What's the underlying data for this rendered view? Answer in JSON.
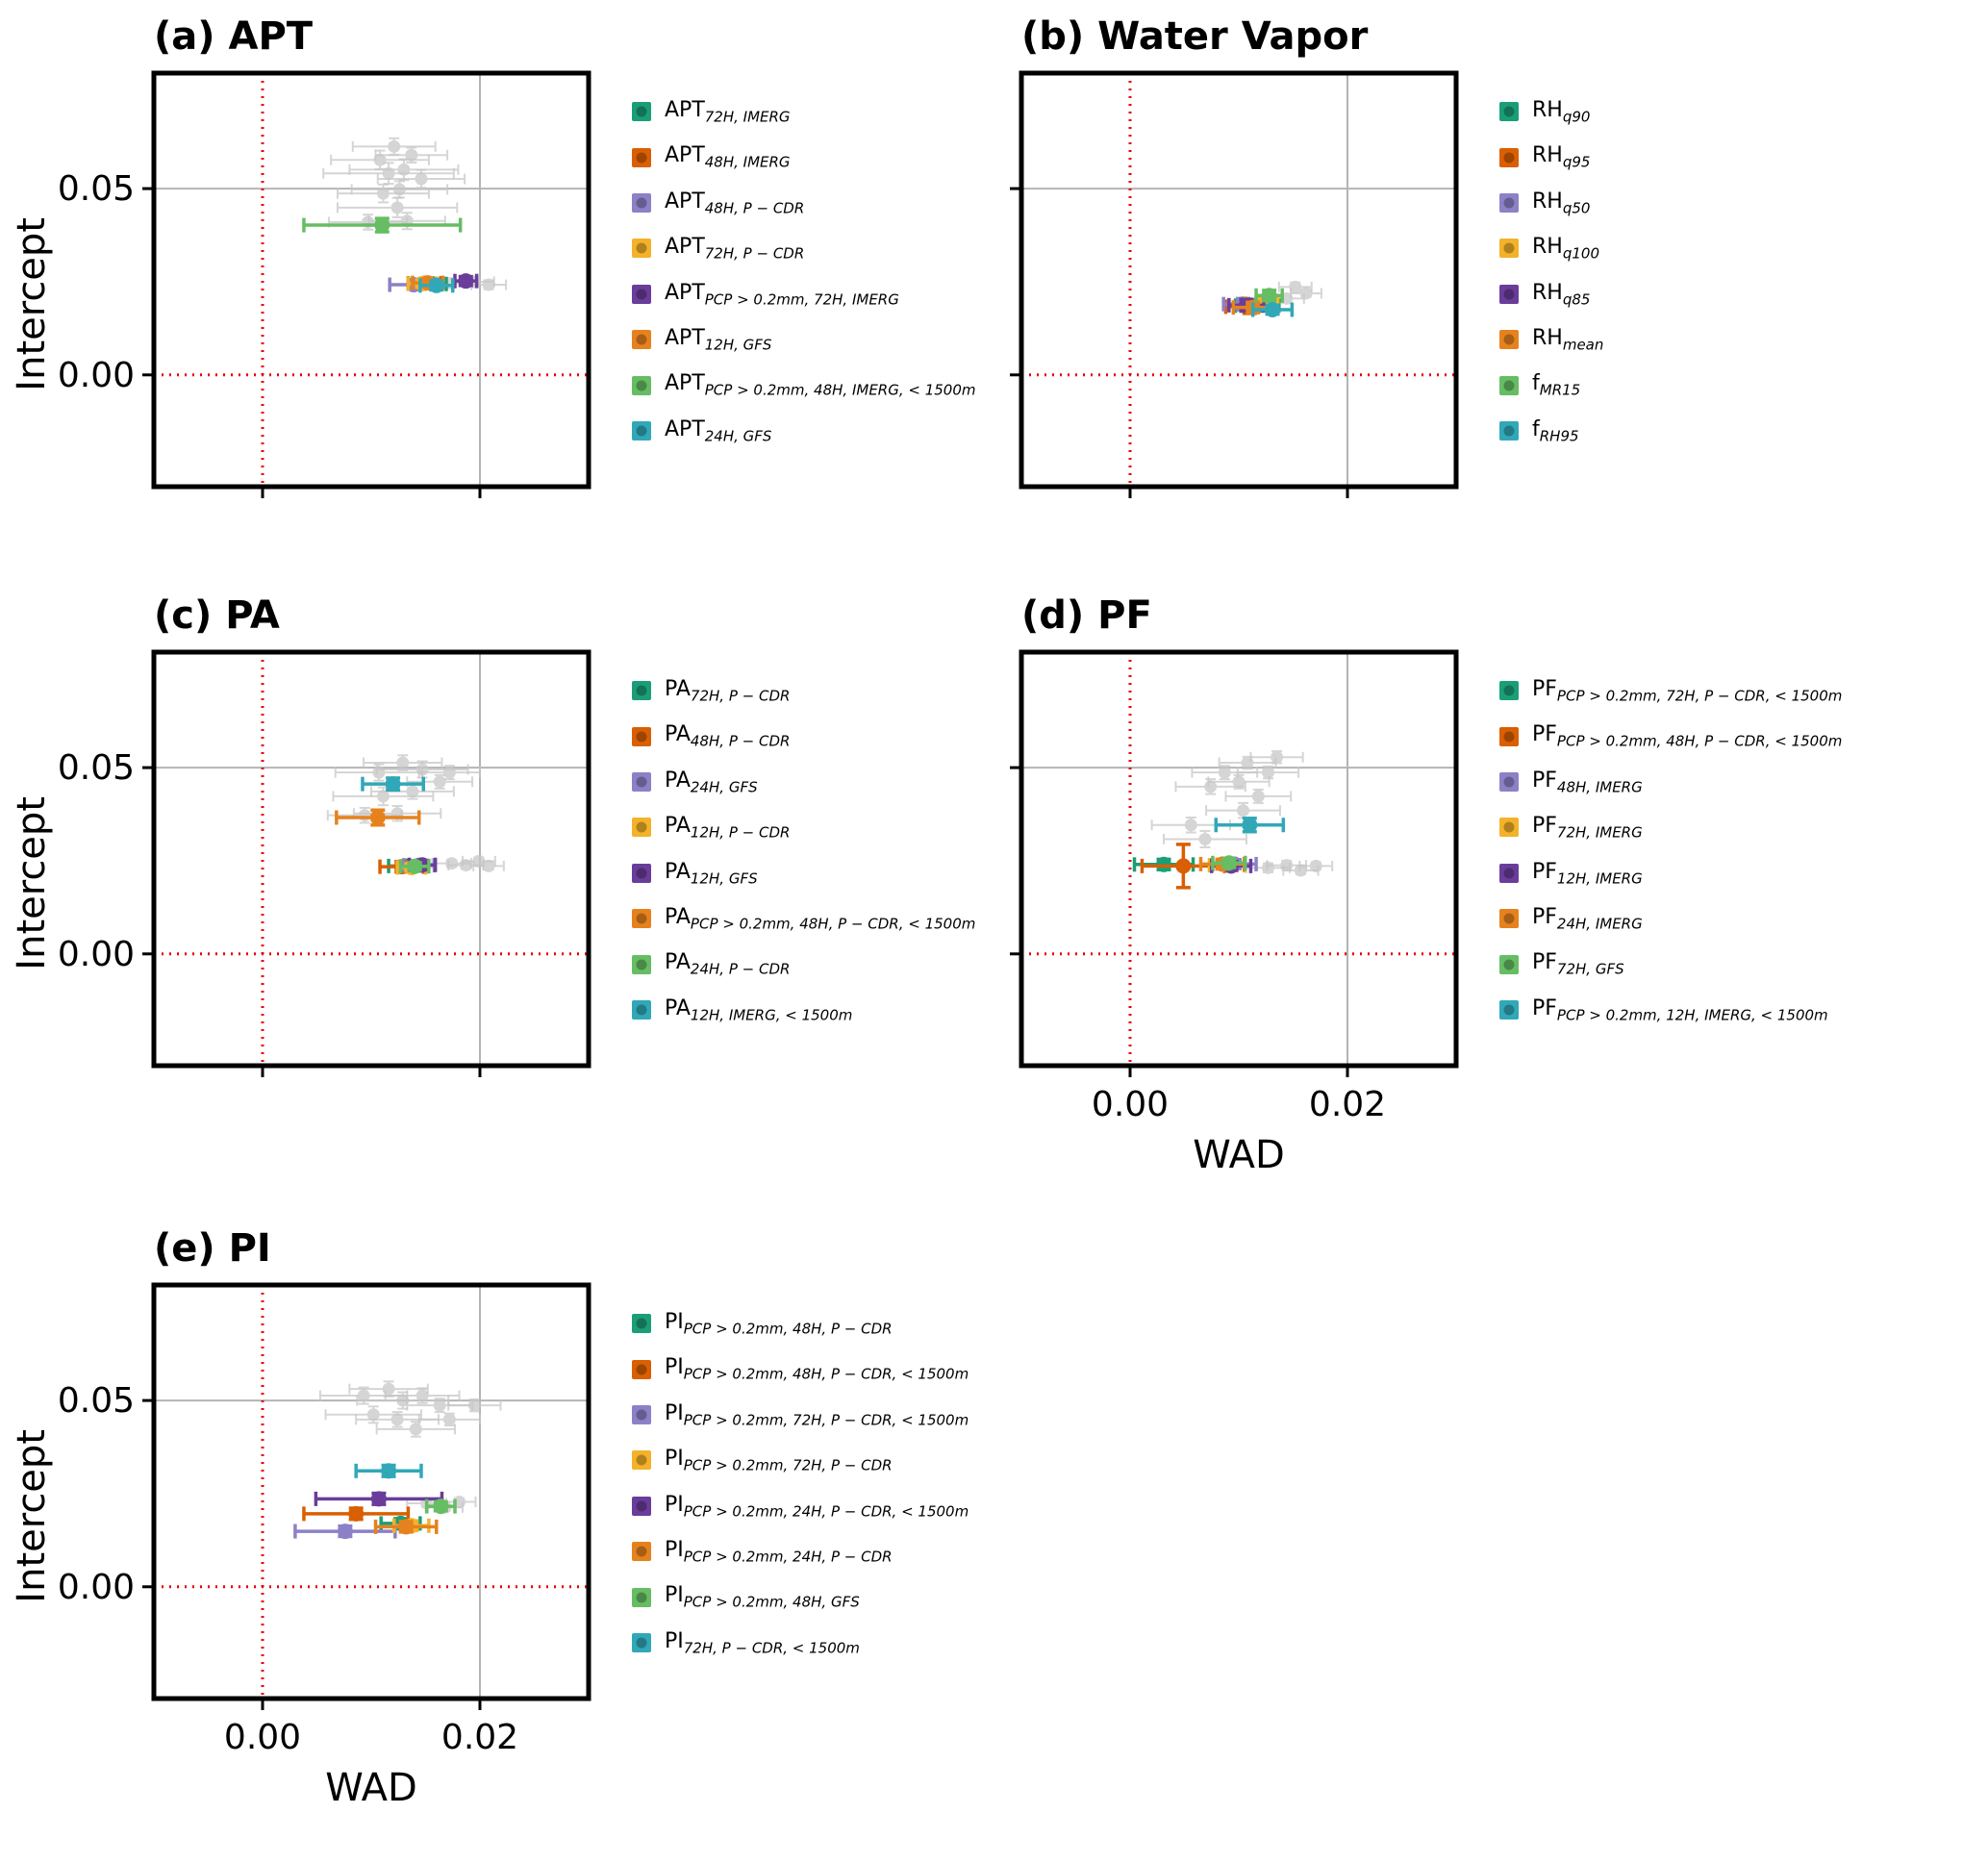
{
  "figure": {
    "background": "#ffffff",
    "ylabel": "Intercept",
    "xlabel": "WAD",
    "ref_line_color": "#e8000b",
    "grid_color": "#b4b4b4",
    "gray_point_color": "#c7c7c7"
  },
  "chart_data": [
    {
      "id": "a",
      "type": "scatter",
      "title": "(a) APT",
      "xlabel": "WAD",
      "ylabel": "Intercept",
      "xlim": [
        -0.01,
        0.03
      ],
      "ylim": [
        -0.03,
        0.081
      ],
      "xticks": [
        0,
        0.02
      ],
      "xtick_labels": [
        "0.00",
        "0.02"
      ],
      "yticks": [
        0.05,
        0
      ],
      "ytick_labels": [
        "0.05",
        "0.00"
      ],
      "grid_x": [
        0.02
      ],
      "grid_y": [
        0.05
      ],
      "show_yticklabels": true,
      "show_xticklabels": false,
      "series": [
        {
          "base": "APT",
          "sub": "72H, IMERG",
          "color": "#1b9e77",
          "x": 0.0157,
          "y": 0.0244,
          "xerr": 0.0012,
          "yerr": 0.0012
        },
        {
          "base": "APT",
          "sub": "48H, IMERG",
          "color": "#d95f02",
          "x": 0.0149,
          "y": 0.0246,
          "xerr": 0.0015,
          "yerr": 0.0012
        },
        {
          "base": "APT",
          "sub": "48H, P − CDR",
          "color": "#8c81c6",
          "x": 0.0139,
          "y": 0.0242,
          "xerr": 0.0022,
          "yerr": 0.0012
        },
        {
          "base": "APT",
          "sub": "72H, P − CDR",
          "color": "#f3b229",
          "x": 0.0147,
          "y": 0.0245,
          "xerr": 0.0013,
          "yerr": 0.001
        },
        {
          "base": "APT",
          "sub": "PCP > 0.2mm, 72H, IMERG",
          "color": "#6a3d9a",
          "x": 0.0187,
          "y": 0.0252,
          "xerr": 0.001,
          "yerr": 0.0012
        },
        {
          "base": "APT",
          "sub": "12H, GFS",
          "color": "#e6821e",
          "x": 0.0152,
          "y": 0.0247,
          "xerr": 0.0014,
          "yerr": 0.001
        },
        {
          "base": "APT",
          "sub": "PCP > 0.2mm, 48H, IMERG,  < 1500m",
          "color": "#66bd63",
          "x": 0.011,
          "y": 0.0402,
          "xerr": 0.0072,
          "yerr": 0.0018
        },
        {
          "base": "APT",
          "sub": "24H, GFS",
          "color": "#31a8b8",
          "x": 0.016,
          "y": 0.024,
          "xerr": 0.0015,
          "yerr": 0.0012
        }
      ],
      "background_points": [
        {
          "x": 0.0108,
          "y": 0.0577,
          "xerr": 0.0045,
          "yerr": 0.0025
        },
        {
          "x": 0.0121,
          "y": 0.0613,
          "xerr": 0.0038,
          "yerr": 0.0022
        },
        {
          "x": 0.013,
          "y": 0.0551,
          "xerr": 0.005,
          "yerr": 0.0028
        },
        {
          "x": 0.0111,
          "y": 0.0487,
          "xerr": 0.0042,
          "yerr": 0.0024
        },
        {
          "x": 0.0097,
          "y": 0.041,
          "xerr": 0.0036,
          "yerr": 0.002
        },
        {
          "x": 0.0124,
          "y": 0.0449,
          "xerr": 0.0055,
          "yerr": 0.0026
        },
        {
          "x": 0.0137,
          "y": 0.059,
          "xerr": 0.0033,
          "yerr": 0.002
        },
        {
          "x": 0.0146,
          "y": 0.0526,
          "xerr": 0.004,
          "yerr": 0.0024
        },
        {
          "x": 0.0116,
          "y": 0.0541,
          "xerr": 0.006,
          "yerr": 0.0028
        },
        {
          "x": 0.0133,
          "y": 0.0413,
          "xerr": 0.0035,
          "yerr": 0.0022
        },
        {
          "x": 0.0126,
          "y": 0.0498,
          "xerr": 0.0044,
          "yerr": 0.0022
        },
        {
          "x": 0.0173,
          "y": 0.0246,
          "xerr": 0.002,
          "yerr": 0.0012
        },
        {
          "x": 0.0195,
          "y": 0.025,
          "xerr": 0.0018,
          "yerr": 0.0012
        },
        {
          "x": 0.0208,
          "y": 0.0242,
          "xerr": 0.0016,
          "yerr": 0.0012
        }
      ]
    },
    {
      "id": "b",
      "type": "scatter",
      "title": "(b) Water Vapor",
      "xlabel": "WAD",
      "ylabel": "Intercept",
      "xlim": [
        -0.01,
        0.03
      ],
      "ylim": [
        -0.03,
        0.081
      ],
      "xticks": [
        0,
        0.02
      ],
      "xtick_labels": [
        "0.00",
        "0.02"
      ],
      "yticks": [
        0.05,
        0
      ],
      "ytick_labels": [
        "0.05",
        "0.00"
      ],
      "grid_x": [
        0.02
      ],
      "grid_y": [
        0.05
      ],
      "show_yticklabels": false,
      "show_xticklabels": false,
      "series": [
        {
          "base": "RH",
          "sub": "q90",
          "color": "#1b9e77",
          "x": 0.0117,
          "y": 0.0186,
          "xerr": 0.002,
          "yerr": 0.0015
        },
        {
          "base": "RH",
          "sub": "q95",
          "color": "#d95f02",
          "x": 0.011,
          "y": 0.0183,
          "xerr": 0.0022,
          "yerr": 0.0018
        },
        {
          "base": "RH",
          "sub": "q50",
          "color": "#8c81c6",
          "x": 0.0104,
          "y": 0.019,
          "xerr": 0.0018,
          "yerr": 0.0015
        },
        {
          "base": "RH",
          "sub": "q100",
          "color": "#f3b229",
          "x": 0.0121,
          "y": 0.0192,
          "xerr": 0.0015,
          "yerr": 0.0015
        },
        {
          "base": "RH",
          "sub": "q85",
          "color": "#6a3d9a",
          "x": 0.0107,
          "y": 0.0187,
          "xerr": 0.0016,
          "yerr": 0.0016
        },
        {
          "base": "RH",
          "sub": "mean",
          "color": "#e6821e",
          "x": 0.0113,
          "y": 0.0181,
          "xerr": 0.0018,
          "yerr": 0.0014
        },
        {
          "base": "f",
          "sub": "MR15",
          "color": "#66bd63",
          "x": 0.0128,
          "y": 0.0213,
          "xerr": 0.0012,
          "yerr": 0.0014
        },
        {
          "base": "f",
          "sub": "RH95",
          "color": "#31a8b8",
          "x": 0.0131,
          "y": 0.0175,
          "xerr": 0.0018,
          "yerr": 0.0012
        }
      ],
      "background_points": [
        {
          "x": 0.0152,
          "y": 0.0236,
          "xerr": 0.0015,
          "yerr": 0.0012
        },
        {
          "x": 0.0162,
          "y": 0.0219,
          "xerr": 0.0014,
          "yerr": 0.001
        },
        {
          "x": 0.0144,
          "y": 0.0205,
          "xerr": 0.0016,
          "yerr": 0.0012
        }
      ]
    },
    {
      "id": "c",
      "type": "scatter",
      "title": "(c) PA",
      "xlabel": "WAD",
      "ylabel": "Intercept",
      "xlim": [
        -0.01,
        0.03
      ],
      "ylim": [
        -0.03,
        0.081
      ],
      "xticks": [
        0,
        0.02
      ],
      "xtick_labels": [
        "0.00",
        "0.02"
      ],
      "yticks": [
        0.05,
        0
      ],
      "ytick_labels": [
        "0.05",
        "0.00"
      ],
      "grid_x": [
        0.02
      ],
      "grid_y": [
        0.05
      ],
      "show_yticklabels": true,
      "show_xticklabels": false,
      "series": [
        {
          "base": "PA",
          "sub": "72H, P − CDR",
          "color": "#1b9e77",
          "x": 0.0134,
          "y": 0.0236,
          "xerr": 0.0018,
          "yerr": 0.0012
        },
        {
          "base": "PA",
          "sub": "48H, P − CDR",
          "color": "#d95f02",
          "x": 0.0128,
          "y": 0.0234,
          "xerr": 0.002,
          "yerr": 0.0014
        },
        {
          "base": "PA",
          "sub": "24H, GFS",
          "color": "#8c81c6",
          "x": 0.0144,
          "y": 0.0238,
          "xerr": 0.0014,
          "yerr": 0.0012
        },
        {
          "base": "PA",
          "sub": "12H, P − CDR",
          "color": "#f3b229",
          "x": 0.0137,
          "y": 0.0232,
          "xerr": 0.0013,
          "yerr": 0.001
        },
        {
          "base": "PA",
          "sub": "12H, GFS",
          "color": "#6a3d9a",
          "x": 0.0147,
          "y": 0.0239,
          "xerr": 0.0012,
          "yerr": 0.0012
        },
        {
          "base": "PA",
          "sub": "PCP > 0.2mm, 48H, P − CDR,  < 1500m",
          "color": "#e6821e",
          "x": 0.0106,
          "y": 0.0366,
          "xerr": 0.0038,
          "yerr": 0.002
        },
        {
          "base": "PA",
          "sub": "24H, P − CDR",
          "color": "#66bd63",
          "x": 0.014,
          "y": 0.0235,
          "xerr": 0.0013,
          "yerr": 0.001
        },
        {
          "base": "PA",
          "sub": "12H, IMERG,  < 1500m",
          "color": "#31a8b8",
          "x": 0.012,
          "y": 0.0456,
          "xerr": 0.0028,
          "yerr": 0.0016
        }
      ],
      "background_points": [
        {
          "x": 0.0107,
          "y": 0.0487,
          "xerr": 0.004,
          "yerr": 0.0022
        },
        {
          "x": 0.0129,
          "y": 0.0513,
          "xerr": 0.0036,
          "yerr": 0.002
        },
        {
          "x": 0.0147,
          "y": 0.0495,
          "xerr": 0.0042,
          "yerr": 0.0022
        },
        {
          "x": 0.0163,
          "y": 0.0462,
          "xerr": 0.003,
          "yerr": 0.0018
        },
        {
          "x": 0.0111,
          "y": 0.0423,
          "xerr": 0.0046,
          "yerr": 0.0024
        },
        {
          "x": 0.0138,
          "y": 0.0436,
          "xerr": 0.0038,
          "yerr": 0.002
        },
        {
          "x": 0.0094,
          "y": 0.0372,
          "xerr": 0.0034,
          "yerr": 0.002
        },
        {
          "x": 0.0124,
          "y": 0.0377,
          "xerr": 0.004,
          "yerr": 0.002
        },
        {
          "x": 0.0172,
          "y": 0.0487,
          "xerr": 0.0028,
          "yerr": 0.0018
        },
        {
          "x": 0.0174,
          "y": 0.0243,
          "xerr": 0.0018,
          "yerr": 0.001
        },
        {
          "x": 0.0187,
          "y": 0.0238,
          "xerr": 0.0016,
          "yerr": 0.001
        },
        {
          "x": 0.0199,
          "y": 0.0249,
          "xerr": 0.0015,
          "yerr": 0.001
        },
        {
          "x": 0.0208,
          "y": 0.0236,
          "xerr": 0.0014,
          "yerr": 0.001
        }
      ]
    },
    {
      "id": "d",
      "type": "scatter",
      "title": "(d) PF",
      "xlabel": "WAD",
      "ylabel": "Intercept",
      "xlim": [
        -0.01,
        0.03
      ],
      "ylim": [
        -0.03,
        0.081
      ],
      "xticks": [
        0,
        0.02
      ],
      "xtick_labels": [
        "0.00",
        "0.02"
      ],
      "yticks": [
        0.05,
        0
      ],
      "ytick_labels": [
        "0.05",
        "0.00"
      ],
      "grid_x": [
        0.02
      ],
      "grid_y": [
        0.05
      ],
      "show_yticklabels": false,
      "show_xticklabels": true,
      "series": [
        {
          "base": "PF",
          "sub": "PCP > 0.2mm, 72H, P − CDR,  < 1500m",
          "color": "#1b9e77",
          "x": 0.0031,
          "y": 0.024,
          "xerr": 0.0027,
          "yerr": 0.0014
        },
        {
          "base": "PF",
          "sub": "PCP > 0.2mm, 48H, P − CDR,  < 1500m",
          "color": "#d95f02",
          "x": 0.0049,
          "y": 0.0236,
          "xerr": 0.0038,
          "yerr": 0.0058
        },
        {
          "base": "PF",
          "sub": "48H, IMERG",
          "color": "#8c81c6",
          "x": 0.0096,
          "y": 0.0241,
          "xerr": 0.002,
          "yerr": 0.0012
        },
        {
          "base": "PF",
          "sub": "72H, IMERG",
          "color": "#f3b229",
          "x": 0.0089,
          "y": 0.0238,
          "xerr": 0.0016,
          "yerr": 0.0012
        },
        {
          "base": "PF",
          "sub": "12H, IMERG",
          "color": "#6a3d9a",
          "x": 0.0093,
          "y": 0.0236,
          "xerr": 0.0018,
          "yerr": 0.0012
        },
        {
          "base": "PF",
          "sub": "24H, IMERG",
          "color": "#e6821e",
          "x": 0.0085,
          "y": 0.0241,
          "xerr": 0.002,
          "yerr": 0.0013
        },
        {
          "base": "PF",
          "sub": "72H, GFS",
          "color": "#66bd63",
          "x": 0.0091,
          "y": 0.0244,
          "xerr": 0.0015,
          "yerr": 0.0012
        },
        {
          "base": "PF",
          "sub": "PCP > 0.2mm, 12H, IMERG,  < 1500m",
          "color": "#31a8b8",
          "x": 0.011,
          "y": 0.0346,
          "xerr": 0.0031,
          "yerr": 0.0018
        }
      ],
      "background_points": [
        {
          "x": 0.0056,
          "y": 0.0346,
          "xerr": 0.0036,
          "yerr": 0.002
        },
        {
          "x": 0.0074,
          "y": 0.0449,
          "xerr": 0.0032,
          "yerr": 0.002
        },
        {
          "x": 0.0087,
          "y": 0.0487,
          "xerr": 0.003,
          "yerr": 0.0018
        },
        {
          "x": 0.01,
          "y": 0.0462,
          "xerr": 0.0028,
          "yerr": 0.0018
        },
        {
          "x": 0.0108,
          "y": 0.0513,
          "xerr": 0.0026,
          "yerr": 0.0016
        },
        {
          "x": 0.0118,
          "y": 0.0423,
          "xerr": 0.003,
          "yerr": 0.0018
        },
        {
          "x": 0.0127,
          "y": 0.0487,
          "xerr": 0.0028,
          "yerr": 0.0016
        },
        {
          "x": 0.0104,
          "y": 0.0385,
          "xerr": 0.0034,
          "yerr": 0.002
        },
        {
          "x": 0.0069,
          "y": 0.0308,
          "xerr": 0.0038,
          "yerr": 0.0022
        },
        {
          "x": 0.0127,
          "y": 0.0231,
          "xerr": 0.002,
          "yerr": 0.0012
        },
        {
          "x": 0.0144,
          "y": 0.0238,
          "xerr": 0.0018,
          "yerr": 0.0012
        },
        {
          "x": 0.0157,
          "y": 0.0224,
          "xerr": 0.0016,
          "yerr": 0.001
        },
        {
          "x": 0.0171,
          "y": 0.0236,
          "xerr": 0.0015,
          "yerr": 0.001
        },
        {
          "x": 0.0135,
          "y": 0.0528,
          "xerr": 0.0024,
          "yerr": 0.0016
        }
      ]
    },
    {
      "id": "e",
      "type": "scatter",
      "title": "(e) PI",
      "xlabel": "WAD",
      "ylabel": "Intercept",
      "xlim": [
        -0.01,
        0.03
      ],
      "ylim": [
        -0.03,
        0.081
      ],
      "xticks": [
        0,
        0.02
      ],
      "xtick_labels": [
        "0.00",
        "0.02"
      ],
      "yticks": [
        0.05,
        0
      ],
      "ytick_labels": [
        "0.05",
        "0.00"
      ],
      "grid_x": [
        0.02
      ],
      "grid_y": [
        0.05
      ],
      "show_yticklabels": true,
      "show_xticklabels": true,
      "series": [
        {
          "base": "PI",
          "sub": "PCP > 0.2mm, 48H, P − CDR",
          "color": "#1b9e77",
          "x": 0.0127,
          "y": 0.017,
          "xerr": 0.0018,
          "yerr": 0.0013
        },
        {
          "base": "PI",
          "sub": "PCP > 0.2mm, 48H, P − CDR,  < 1500m",
          "color": "#d95f02",
          "x": 0.0086,
          "y": 0.0196,
          "xerr": 0.0048,
          "yerr": 0.0015
        },
        {
          "base": "PI",
          "sub": "PCP > 0.2mm, 72H, P − CDR,  < 1500m",
          "color": "#8c81c6",
          "x": 0.0076,
          "y": 0.0149,
          "xerr": 0.0046,
          "yerr": 0.0014
        },
        {
          "base": "PI",
          "sub": "PCP > 0.2mm, 72H, P − CDR",
          "color": "#f3b229",
          "x": 0.0137,
          "y": 0.0164,
          "xerr": 0.0016,
          "yerr": 0.0013
        },
        {
          "base": "PI",
          "sub": "PCP > 0.2mm, 24H, P − CDR,  < 1500m",
          "color": "#6a3d9a",
          "x": 0.0107,
          "y": 0.0236,
          "xerr": 0.0058,
          "yerr": 0.0015
        },
        {
          "base": "PI",
          "sub": "PCP > 0.2mm, 24H, P − CDR",
          "color": "#e6821e",
          "x": 0.0132,
          "y": 0.0161,
          "xerr": 0.0028,
          "yerr": 0.0014
        },
        {
          "base": "PI",
          "sub": "PCP > 0.2mm, 48H, GFS",
          "color": "#66bd63",
          "x": 0.0164,
          "y": 0.0216,
          "xerr": 0.0013,
          "yerr": 0.0012
        },
        {
          "base": "PI",
          "sub": "72H, P − CDR,  < 1500m",
          "color": "#31a8b8",
          "x": 0.0116,
          "y": 0.0311,
          "xerr": 0.003,
          "yerr": 0.0015
        }
      ],
      "background_points": [
        {
          "x": 0.0093,
          "y": 0.0513,
          "xerr": 0.004,
          "yerr": 0.0022
        },
        {
          "x": 0.0116,
          "y": 0.0531,
          "xerr": 0.0036,
          "yerr": 0.002
        },
        {
          "x": 0.0129,
          "y": 0.05,
          "xerr": 0.0042,
          "yerr": 0.0022
        },
        {
          "x": 0.0147,
          "y": 0.0513,
          "xerr": 0.0034,
          "yerr": 0.002
        },
        {
          "x": 0.0163,
          "y": 0.0487,
          "xerr": 0.003,
          "yerr": 0.0018
        },
        {
          "x": 0.0102,
          "y": 0.0462,
          "xerr": 0.0044,
          "yerr": 0.0022
        },
        {
          "x": 0.0124,
          "y": 0.0449,
          "xerr": 0.0038,
          "yerr": 0.002
        },
        {
          "x": 0.0141,
          "y": 0.0423,
          "xerr": 0.0036,
          "yerr": 0.002
        },
        {
          "x": 0.0172,
          "y": 0.0449,
          "xerr": 0.0028,
          "yerr": 0.0016
        },
        {
          "x": 0.0195,
          "y": 0.0487,
          "xerr": 0.0024,
          "yerr": 0.0016
        },
        {
          "x": 0.0151,
          "y": 0.0224,
          "xerr": 0.0018,
          "yerr": 0.001
        },
        {
          "x": 0.0168,
          "y": 0.0213,
          "xerr": 0.0016,
          "yerr": 0.001
        },
        {
          "x": 0.0181,
          "y": 0.0228,
          "xerr": 0.0015,
          "yerr": 0.001
        }
      ]
    }
  ]
}
